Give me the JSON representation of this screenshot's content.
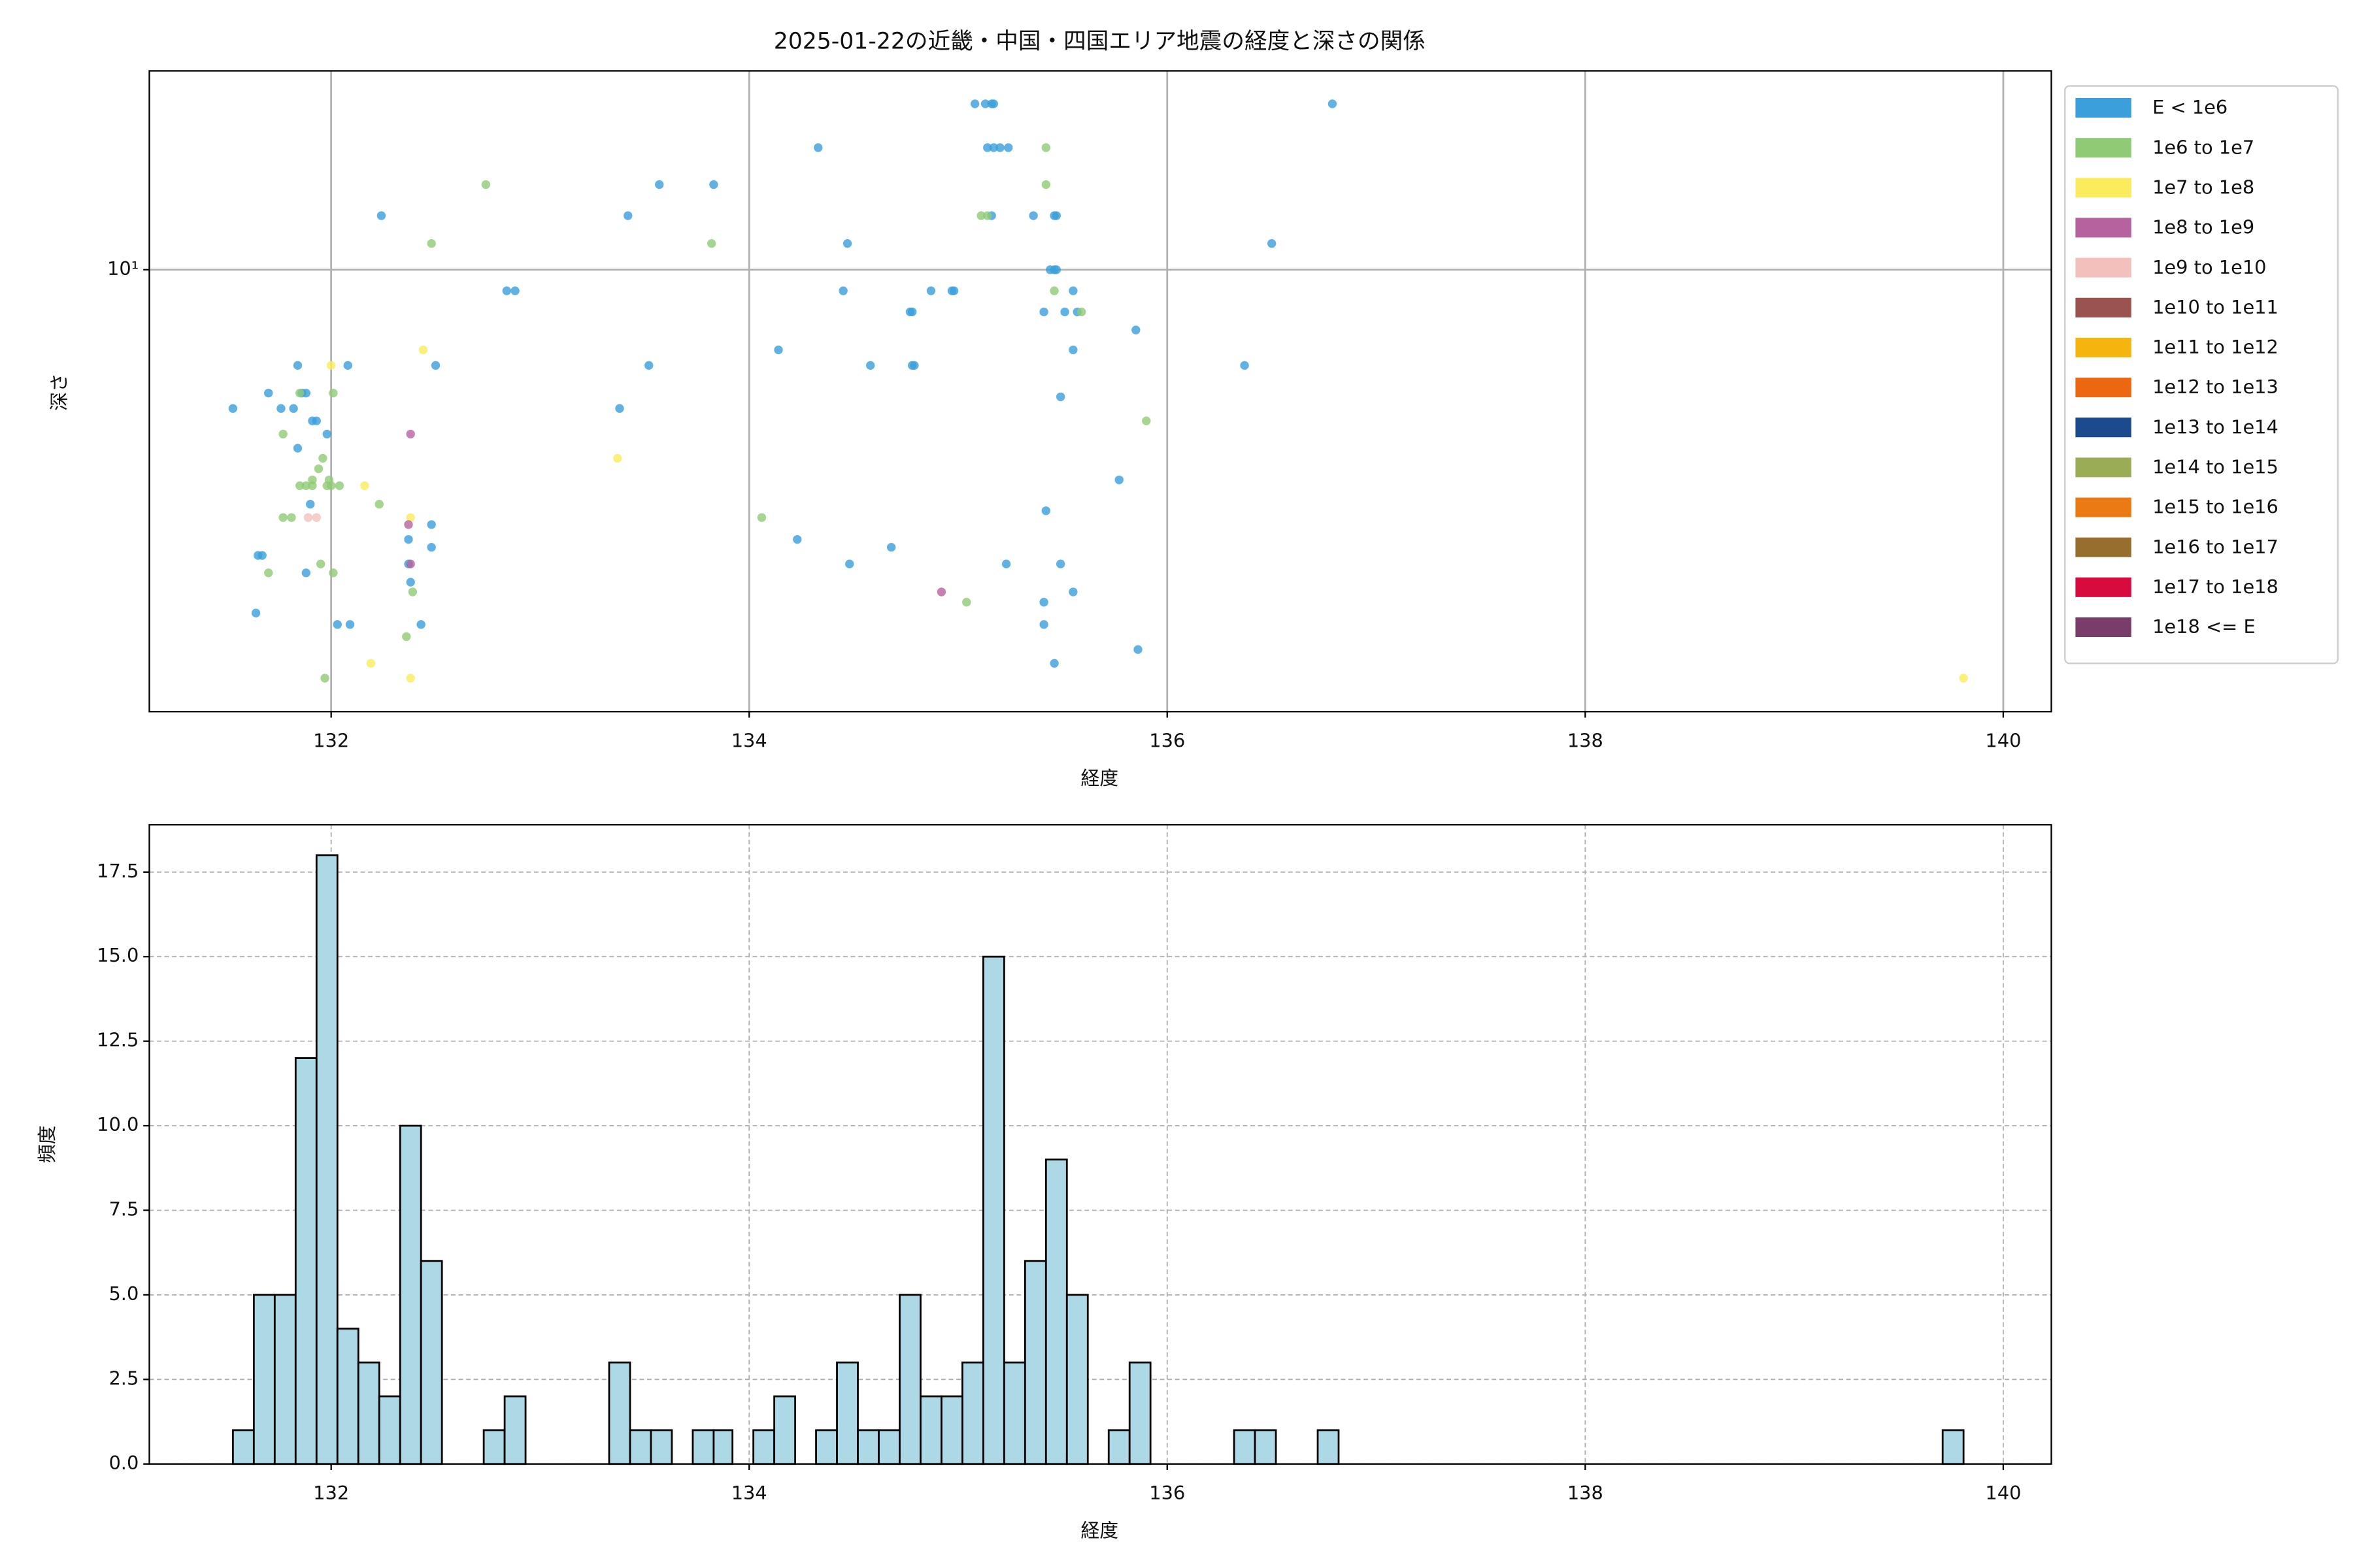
{
  "chart_data": [
    {
      "type": "scatter",
      "title": "2025-01-22の近畿・中国・四国エリア地震の経度と深さの関係",
      "xlabel": "経度",
      "ylabel": "深さ",
      "xlim": [
        131.13,
        140.23
      ],
      "ylim": [
        1.1,
        27
      ],
      "yscale": "log",
      "xticks": [
        132,
        134,
        136,
        138,
        140
      ],
      "yticks": [
        {
          "value": 10,
          "label": "10¹"
        }
      ],
      "grid": true,
      "legend": "outside-right",
      "series": [
        {
          "name": "E < 1e6",
          "color": "#3a9fdb",
          "x": [
            131.53,
            131.64,
            131.65,
            131.67,
            131.7,
            131.76,
            131.82,
            131.84,
            131.86,
            131.84,
            131.88,
            131.91,
            131.93,
            131.98,
            132.08,
            131.88,
            131.9,
            132.03,
            132.09,
            132.24,
            132.37,
            132.37,
            132.38,
            132.43,
            132.48,
            132.48,
            132.5,
            132.84,
            132.88,
            133.38,
            133.42,
            133.52,
            133.57,
            133.83,
            134.14,
            134.23,
            134.33,
            134.45,
            134.47,
            134.48,
            134.58,
            134.68,
            134.77,
            134.78,
            134.78,
            134.79,
            134.87,
            134.97,
            134.98,
            135.08,
            135.13,
            135.16,
            135.17,
            135.14,
            135.17,
            135.2,
            135.24,
            135.23,
            135.16,
            135.36,
            135.41,
            135.44,
            135.46,
            135.47,
            135.46,
            135.47,
            135.49,
            135.51,
            135.55,
            135.55,
            135.55,
            135.57,
            135.42,
            135.41,
            135.41,
            135.46,
            135.49,
            135.77,
            135.85,
            135.86,
            136.37,
            136.5,
            136.79
          ],
          "values": [
            5.0,
            1.8,
            2.4,
            2.4,
            5.4,
            5.0,
            5.0,
            6.2,
            5.4,
            4.1,
            5.4,
            4.7,
            4.7,
            4.4,
            6.2,
            2.2,
            3.1,
            1.7,
            1.7,
            13.1,
            2.6,
            2.3,
            2.1,
            1.7,
            2.8,
            2.5,
            6.2,
            9.0,
            9.0,
            5.0,
            13.1,
            6.2,
            15.3,
            15.3,
            6.7,
            2.6,
            18.4,
            9.0,
            11.4,
            2.3,
            6.2,
            2.5,
            8.1,
            8.1,
            6.2,
            6.2,
            9.0,
            9.0,
            9.0,
            22.9,
            22.9,
            22.9,
            22.9,
            18.4,
            18.4,
            18.4,
            18.4,
            2.3,
            13.1,
            13.1,
            8.1,
            10,
            10,
            10,
            13.1,
            13.1,
            2.3,
            8.1,
            2.0,
            6.7,
            9.0,
            8.1,
            3.0,
            1.9,
            1.7,
            1.4,
            5.3,
            3.5,
            7.4,
            1.5,
            6.2,
            11.4,
            22.9
          ]
        },
        {
          "name": "1e6 to 1e7",
          "color": "#8fca75",
          "x": [
            131.7,
            131.77,
            131.77,
            131.81,
            131.85,
            131.85,
            131.88,
            131.91,
            131.91,
            131.94,
            131.96,
            131.98,
            131.99,
            132.0,
            132.01,
            132.01,
            132.04,
            131.95,
            131.97,
            132.23,
            132.36,
            132.39,
            132.48,
            132.74,
            133.82,
            134.06,
            135.04,
            135.11,
            135.14,
            135.42,
            135.42,
            135.46,
            135.59,
            135.9
          ],
          "values": [
            2.2,
            4.4,
            2.9,
            2.9,
            5.4,
            3.4,
            3.4,
            3.5,
            3.4,
            3.7,
            3.9,
            3.4,
            3.5,
            3.4,
            5.4,
            2.2,
            3.4,
            2.3,
            1.3,
            3.1,
            1.6,
            2.0,
            11.4,
            15.3,
            11.4,
            2.9,
            1.9,
            13.1,
            13.1,
            18.4,
            15.3,
            9.0,
            8.1,
            4.7
          ]
        },
        {
          "name": "1e7 to 1e8",
          "color": "#fbec5d",
          "x": [
            132.0,
            132.16,
            132.19,
            132.38,
            132.38,
            132.44,
            133.37,
            139.81
          ],
          "values": [
            6.2,
            3.4,
            1.4,
            2.9,
            1.3,
            6.7,
            3.9,
            1.3
          ]
        },
        {
          "name": "1e8 to 1e9",
          "color": "#b5629e",
          "x": [
            132.38,
            132.37,
            132.38,
            134.92
          ],
          "values": [
            4.4,
            2.8,
            2.3,
            2.0
          ]
        },
        {
          "name": "1e9 to 1e10",
          "color": "#f3c0bb",
          "x": [
            131.89,
            131.93
          ],
          "values": [
            2.9,
            2.9
          ]
        },
        {
          "name": "1e10 to 1e11",
          "color": "#9b534f",
          "x": [],
          "values": []
        },
        {
          "name": "1e11 to 1e12",
          "color": "#f6b40e",
          "x": [],
          "values": []
        },
        {
          "name": "1e12 to 1e13",
          "color": "#ec670f",
          "x": [],
          "values": []
        },
        {
          "name": "1e13 to 1e14",
          "color": "#1b4a8f",
          "x": [],
          "values": []
        },
        {
          "name": "1e14 to 1e15",
          "color": "#9bad54",
          "x": [],
          "values": []
        },
        {
          "name": "1e15 to 1e16",
          "color": "#ec7a14",
          "x": [],
          "values": []
        },
        {
          "name": "1e16 to 1e17",
          "color": "#976e2d",
          "x": [],
          "values": []
        },
        {
          "name": "1e17 to 1e18",
          "color": "#d80b3e",
          "x": [],
          "values": []
        },
        {
          "name": "1e18 <= E",
          "color": "#7a3d6b",
          "x": [],
          "values": []
        }
      ]
    },
    {
      "type": "histogram",
      "xlabel": "経度",
      "ylabel": "頻度",
      "xlim": [
        131.13,
        140.23
      ],
      "ylim": [
        0,
        18.9
      ],
      "xticks": [
        132,
        134,
        136,
        138,
        140
      ],
      "yticks": [
        {
          "value": 0,
          "label": "0.0"
        },
        {
          "value": 2.5,
          "label": "2.5"
        },
        {
          "value": 5,
          "label": "5.0"
        },
        {
          "value": 7.5,
          "label": "7.5"
        },
        {
          "value": 10,
          "label": "10.0"
        },
        {
          "value": 12.5,
          "label": "12.5"
        },
        {
          "value": 15,
          "label": "15.0"
        },
        {
          "value": 17.5,
          "label": "17.5"
        }
      ],
      "grid": true,
      "color": "#add8e6",
      "edgecolor": "#000000",
      "bins": [
        131.53,
        131.63,
        131.73,
        131.83,
        131.93,
        132.03,
        132.13,
        132.23,
        132.33,
        132.43,
        132.53,
        132.63,
        132.73,
        132.83,
        132.93,
        133.03,
        133.13,
        133.23,
        133.33,
        133.43,
        133.53,
        133.63,
        133.73,
        133.83,
        133.92,
        134.02,
        134.12,
        134.22,
        134.32,
        134.42,
        134.52,
        134.62,
        134.72,
        134.82,
        134.92,
        135.02,
        135.12,
        135.22,
        135.32,
        135.42,
        135.52,
        135.62,
        135.72,
        135.82,
        135.92,
        136.02,
        136.12,
        136.22,
        136.32,
        136.42,
        136.52,
        136.62,
        136.72,
        136.82,
        136.92,
        137.02,
        137.12,
        137.22,
        137.32,
        137.42,
        137.52,
        137.62,
        137.72,
        137.82,
        137.91,
        138.01,
        138.11,
        138.21,
        138.31,
        138.41,
        138.51,
        138.61,
        138.71,
        138.81,
        138.91,
        139.01,
        139.11,
        139.21,
        139.31,
        139.41,
        139.51,
        139.61,
        139.71,
        139.81
      ],
      "counts": [
        1,
        5,
        5,
        12,
        18,
        4,
        3,
        2,
        10,
        6,
        0,
        0,
        1,
        2,
        0,
        0,
        0,
        0,
        3,
        1,
        1,
        0,
        1,
        1,
        0,
        1,
        2,
        0,
        1,
        3,
        1,
        1,
        5,
        2,
        2,
        3,
        15,
        3,
        6,
        9,
        5,
        0,
        1,
        3,
        0,
        0,
        0,
        0,
        1,
        1,
        0,
        0,
        1,
        0,
        0,
        0,
        0,
        0,
        0,
        0,
        0,
        0,
        0,
        0,
        0,
        0,
        0,
        0,
        0,
        0,
        0,
        0,
        0,
        0,
        0,
        0,
        0,
        0,
        0,
        0,
        0,
        0,
        1
      ]
    }
  ]
}
